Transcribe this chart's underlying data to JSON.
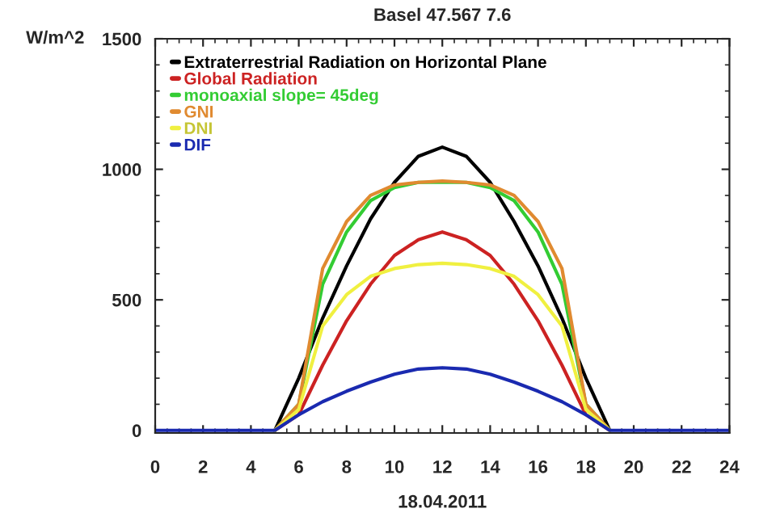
{
  "chart_data": {
    "type": "line",
    "title": "Basel 47.567 7.6",
    "xlabel": "18.04.2011",
    "ylabel": "W/m^2",
    "x": [
      0,
      1,
      2,
      3,
      4,
      5,
      6,
      7,
      8,
      9,
      10,
      11,
      12,
      13,
      14,
      15,
      16,
      17,
      18,
      19,
      20,
      21,
      22,
      23,
      24
    ],
    "series": [
      {
        "name": "Extraterrestrial Radiation on Horizontal Plane",
        "color": "#000000",
        "values": [
          null,
          null,
          null,
          null,
          null,
          0,
          200,
          430,
          630,
          810,
          950,
          1050,
          1085,
          1050,
          950,
          800,
          630,
          430,
          200,
          0,
          null,
          null,
          null,
          null,
          null
        ]
      },
      {
        "name": "Global Radiation",
        "color": "#cc2222",
        "values": [
          null,
          null,
          null,
          null,
          null,
          0,
          60,
          250,
          420,
          560,
          670,
          730,
          760,
          730,
          670,
          560,
          420,
          250,
          60,
          0,
          null,
          null,
          null,
          null,
          null
        ]
      },
      {
        "name": "monoaxial slope= 45deg",
        "color": "#33cc33",
        "values": [
          null,
          null,
          null,
          null,
          null,
          0,
          100,
          560,
          760,
          880,
          930,
          950,
          950,
          950,
          930,
          880,
          760,
          560,
          100,
          0,
          null,
          null,
          null,
          null,
          null
        ]
      },
      {
        "name": "GNI",
        "color": "#e08a30",
        "values": [
          null,
          null,
          null,
          null,
          null,
          0,
          100,
          620,
          800,
          900,
          940,
          950,
          955,
          950,
          940,
          900,
          800,
          620,
          100,
          0,
          null,
          null,
          null,
          null,
          null
        ]
      },
      {
        "name": "DNI",
        "color": "#f0f040",
        "values": [
          null,
          null,
          null,
          null,
          null,
          0,
          80,
          400,
          520,
          590,
          620,
          635,
          640,
          635,
          620,
          590,
          520,
          400,
          80,
          0,
          null,
          null,
          null,
          null,
          null
        ]
      },
      {
        "name": "DIF",
        "color": "#1a2ab0",
        "values": [
          0,
          0,
          0,
          0,
          0,
          0,
          60,
          110,
          150,
          185,
          215,
          235,
          240,
          235,
          215,
          185,
          150,
          110,
          60,
          0,
          0,
          0,
          0,
          0,
          0
        ]
      }
    ],
    "xlim": [
      0,
      24
    ],
    "xticks": [
      0,
      2,
      4,
      6,
      8,
      10,
      12,
      14,
      16,
      18,
      20,
      22,
      24
    ],
    "ylim": [
      -10,
      1500
    ],
    "yticks": [
      0,
      500,
      1000,
      1500
    ],
    "grid": false,
    "legend": "top left",
    "marker": "none",
    "line_style": "solid"
  }
}
